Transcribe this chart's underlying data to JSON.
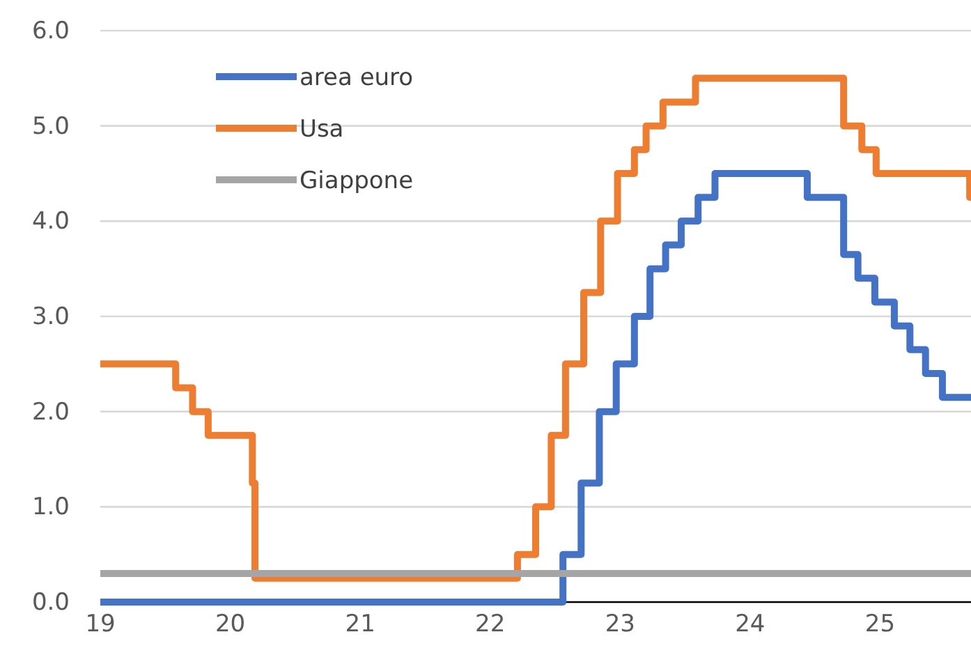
{
  "chart_data": {
    "type": "step",
    "xlim": [
      19,
      25.7
    ],
    "xticks": [
      19,
      20,
      21,
      22,
      23,
      24,
      25
    ],
    "ylim": [
      0,
      6
    ],
    "yticks": [
      {
        "value": 0,
        "label": "0.0"
      },
      {
        "value": 1,
        "label": "1.0"
      },
      {
        "value": 2,
        "label": "2.0"
      },
      {
        "value": 3,
        "label": "3.0"
      },
      {
        "value": 4,
        "label": "4.0"
      },
      {
        "value": 5,
        "label": "5.0"
      },
      {
        "value": 6,
        "label": "6.0"
      }
    ],
    "grid": "y",
    "legend": "top left",
    "line_style": "solid",
    "marker": "none",
    "series": [
      {
        "name": "area euro",
        "color": "#4472c4",
        "x": [
          19,
          22.56,
          22.7,
          22.84,
          22.97,
          23.11,
          23.23,
          23.35,
          23.47,
          23.6,
          23.73,
          24.44,
          24.72,
          24.83,
          24.96,
          25.11,
          25.23,
          25.35,
          25.48,
          25.7
        ],
        "values": [
          0,
          0.5,
          1.25,
          2,
          2.5,
          3,
          3.5,
          3.75,
          4,
          4.25,
          4.5,
          4.25,
          3.65,
          3.4,
          3.15,
          2.9,
          2.65,
          2.4,
          2.15,
          2.15
        ]
      },
      {
        "name": "Usa",
        "color": "#ed7d31",
        "x": [
          19,
          19.58,
          19.71,
          19.83,
          20.17,
          20.19,
          22.21,
          22.35,
          22.47,
          22.58,
          22.72,
          22.85,
          22.98,
          23.11,
          23.2,
          23.33,
          23.58,
          24.72,
          24.86,
          24.97,
          25.69,
          25.7
        ],
        "values": [
          2.5,
          2.25,
          2,
          1.75,
          1.25,
          0.25,
          0.5,
          1,
          1.75,
          2.5,
          3.25,
          4,
          4.5,
          4.75,
          5,
          5.25,
          5.5,
          5,
          4.75,
          4.5,
          4.25,
          4.25
        ]
      },
      {
        "name": "Giappone",
        "color": "#a5a5a5",
        "x": [
          19,
          25.7
        ],
        "values": [
          0.3,
          0.3
        ]
      }
    ]
  }
}
